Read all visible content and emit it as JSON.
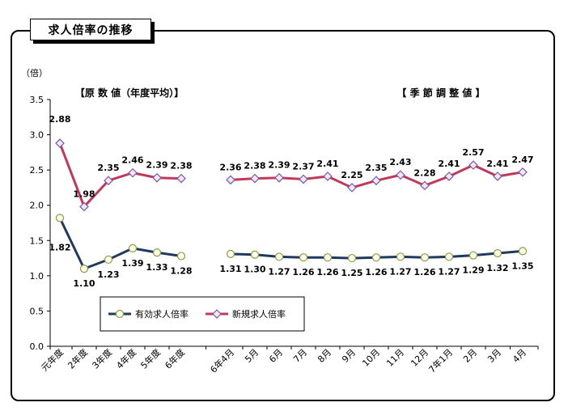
{
  "panel_title": "求人倍率の推移",
  "section_left": "【原 数 値（年度平均）】",
  "section_right": "【 季 節 調 整 値 】",
  "colors": {
    "effective": "#1f3a5f",
    "new": "#c0395a",
    "effective_marker_fill": "#ffffe6",
    "new_marker_fill": "#f2e6ff"
  },
  "chart_data": {
    "type": "line",
    "unit_label": "（倍）",
    "ylim": [
      0,
      3.5
    ],
    "yticks": [
      "0.0",
      "0.5",
      "1.0",
      "1.5",
      "2.0",
      "2.5",
      "3.0",
      "3.5"
    ],
    "categories": [
      "元年度",
      "2年度",
      "3年度",
      "4年度",
      "5年度",
      "6年度",
      "6年4月",
      "5月",
      "6月",
      "7月",
      "8月",
      "9月",
      "10月",
      "11月",
      "12月",
      "7年1月",
      "2月",
      "3月",
      "4月"
    ],
    "series": [
      {
        "name": "有効求人倍率",
        "values": [
          1.82,
          1.1,
          1.23,
          1.39,
          1.33,
          1.28,
          1.31,
          1.3,
          1.27,
          1.26,
          1.26,
          1.25,
          1.26,
          1.27,
          1.26,
          1.27,
          1.29,
          1.32,
          1.35
        ],
        "labels": [
          "1.82",
          "1.10",
          "1.23",
          "1.39",
          "1.33",
          "1.28",
          "1.31",
          "1.30",
          "1.27",
          "1.26",
          "1.26",
          "1.25",
          "1.26",
          "1.27",
          "1.26",
          "1.27",
          "1.29",
          "1.32",
          "1.35"
        ]
      },
      {
        "name": "新規求人倍率",
        "values": [
          2.88,
          1.98,
          2.35,
          2.46,
          2.39,
          2.38,
          2.36,
          2.38,
          2.39,
          2.37,
          2.41,
          2.25,
          2.35,
          2.43,
          2.28,
          2.41,
          2.57,
          2.41,
          2.47
        ],
        "labels": [
          "2.88",
          "1.98",
          "2.35",
          "2.46",
          "2.39",
          "2.38",
          "2.36",
          "2.38",
          "2.39",
          "2.37",
          "2.41",
          "2.25",
          "2.35",
          "2.43",
          "2.28",
          "2.41",
          "2.57",
          "2.41",
          "2.47"
        ]
      }
    ],
    "legend": "bottom-left-inside",
    "grid": false
  }
}
